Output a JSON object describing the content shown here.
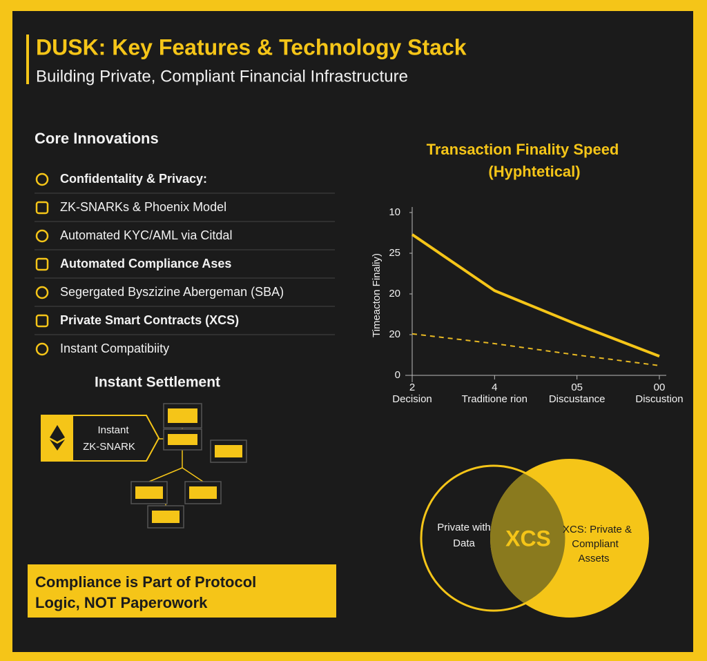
{
  "header": {
    "title": "DUSK: Key Features & Technology Stack",
    "subtitle": "Building Private, Compliant Financial Infrastructure"
  },
  "core_innovations": {
    "heading": "Core Innovations",
    "items": [
      "Confidentality & Privacy:",
      "ZK-SNARKs & Phoenix Model",
      "Automated KYC/AML via Citdal",
      "Automated Compliance Ases",
      "Segergated Byszizine Abergeman (SBA)",
      "Private Smart Contracts (XCS)",
      "Instant Compatibiity"
    ]
  },
  "settlement": {
    "heading": "Instant Settlement",
    "box_lines": [
      "Instant",
      "ZK-SNARK"
    ]
  },
  "callout": {
    "lines": [
      "Compliance is Part of Protocol",
      "Logic, NOT Paperowork"
    ]
  },
  "chart_data": {
    "type": "line",
    "title": "Transaction Finality Speed",
    "subtitle": "(Hyphtetical)",
    "y_label": "Timeacton Finaliy)",
    "categories": [
      "Decision",
      "Traditione rion",
      "Discustance",
      "Discustion"
    ],
    "x_tick_numbers": [
      "2",
      "4",
      "05",
      "00"
    ],
    "ylim": [
      0,
      4
    ],
    "yticks": [
      {
        "value": 4,
        "label": "10"
      },
      {
        "value": 3,
        "label": "25"
      },
      {
        "value": 2,
        "label": "20"
      },
      {
        "value": 1,
        "label": "20"
      },
      0
    ],
    "grid": false,
    "series": [
      {
        "color": "#f5c518",
        "dashed": false,
        "values": [
          3.46,
          2.08,
          1.25,
          0.47
        ]
      },
      {
        "color": "#e8b923",
        "dashed": true,
        "values": [
          1.02,
          0.78,
          0.5,
          0.24
        ]
      }
    ]
  },
  "venn": {
    "left_lines": [
      "Private with",
      "Data"
    ],
    "center": "XCS",
    "right_lines": [
      "XCS: Private &",
      "Compliant",
      "Assets"
    ]
  }
}
